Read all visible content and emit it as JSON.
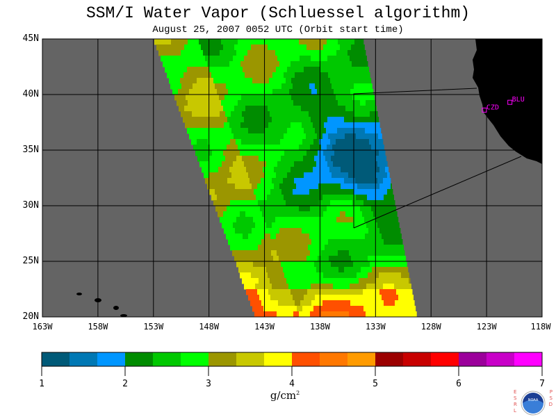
{
  "title": "SSM/I Water Vapor (Schluessel algorithm)",
  "subtitle": "August 25, 2007  0052 UTC  (Orbit start time)",
  "map": {
    "lon_range": [
      -163,
      -118
    ],
    "lat_range": [
      20,
      45
    ],
    "y_ticks": [
      "45N",
      "40N",
      "35N",
      "30N",
      "25N",
      "20N"
    ],
    "x_ticks": [
      "163W",
      "158W",
      "153W",
      "148W",
      "143W",
      "138W",
      "133W",
      "128W",
      "123W",
      "118W"
    ],
    "background_color": "#646464",
    "land_color": "#000000",
    "stations": [
      {
        "label": "CZD",
        "lat": 38.6,
        "lon": -123.2
      },
      {
        "label": "BLU",
        "lat": 39.3,
        "lon": -120.9
      }
    ],
    "station_color": "#ff00ff"
  },
  "colorbar": {
    "min": 1,
    "max": 7,
    "labels": [
      "1",
      "2",
      "3",
      "4",
      "5",
      "6",
      "7"
    ],
    "colors": [
      "#005a78",
      "#0078b4",
      "#0096ff",
      "#008c00",
      "#00c800",
      "#00ff00",
      "#9b9600",
      "#c8c800",
      "#ffff00",
      "#ff5000",
      "#ff7800",
      "#ff9b00",
      "#9b0000",
      "#c80000",
      "#ff0000",
      "#9b009b",
      "#c800c8",
      "#ff00ff"
    ],
    "unit": "g/cm",
    "unit_exp": "2"
  },
  "logo": {
    "left_text": "ESRL",
    "right_text": "PSD",
    "center_text": "NOAA"
  }
}
